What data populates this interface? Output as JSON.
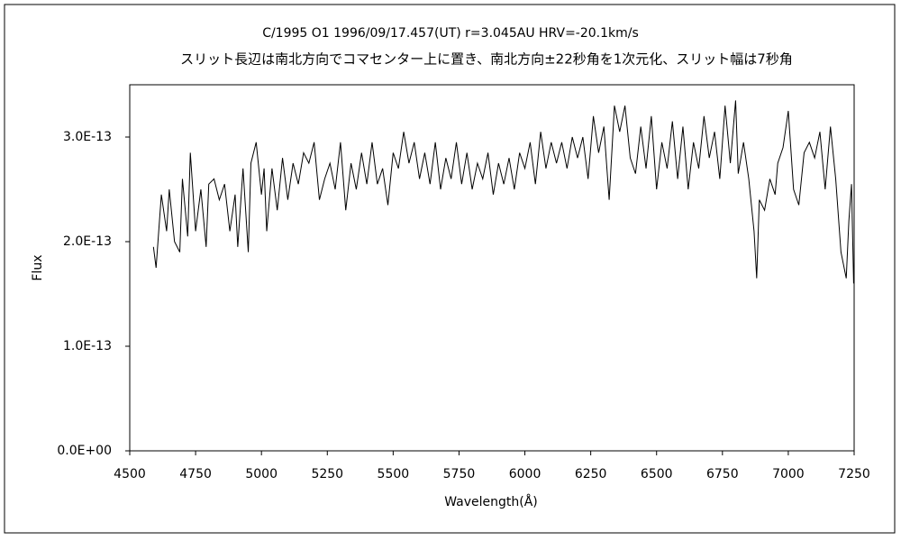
{
  "chart_data": {
    "type": "line",
    "title": "C/1995 O1    1996/09/17.457(UT)    r=3.045AU    HRV=-20.1km/s",
    "subtitle": "スリット長辺は南北方向でコマセンター上に置き、南北方向±22秒角を1次元化、スリット幅は7秒角",
    "x_label": "Wavelength(Å)",
    "y_label": "Flux",
    "color": "#000000",
    "xlim": [
      4500,
      7250
    ],
    "xticks": [
      4500,
      4750,
      5000,
      5250,
      5500,
      5750,
      6000,
      6250,
      6500,
      6750,
      7000,
      7250
    ],
    "ylim": [
      0,
      3.5e-13
    ],
    "yticks": [
      {
        "value": 0,
        "label": "0.0E+00"
      },
      {
        "value": 1e-13,
        "label": "1.0E-13"
      },
      {
        "value": 2e-13,
        "label": "2.0E-13"
      },
      {
        "value": 3e-13,
        "label": "3.0E-13"
      }
    ],
    "x": [
      4590,
      4600,
      4620,
      4640,
      4650,
      4670,
      4690,
      4700,
      4720,
      4730,
      4750,
      4770,
      4790,
      4800,
      4820,
      4840,
      4860,
      4880,
      4900,
      4910,
      4930,
      4950,
      4960,
      4980,
      5000,
      5010,
      5020,
      5040,
      5060,
      5080,
      5100,
      5120,
      5140,
      5160,
      5180,
      5200,
      5220,
      5240,
      5260,
      5280,
      5300,
      5320,
      5340,
      5360,
      5380,
      5400,
      5420,
      5440,
      5460,
      5480,
      5500,
      5520,
      5540,
      5560,
      5580,
      5600,
      5620,
      5640,
      5660,
      5680,
      5700,
      5720,
      5740,
      5760,
      5780,
      5800,
      5820,
      5840,
      5860,
      5880,
      5900,
      5920,
      5940,
      5960,
      5980,
      6000,
      6020,
      6040,
      6060,
      6080,
      6100,
      6120,
      6140,
      6160,
      6180,
      6200,
      6220,
      6240,
      6260,
      6280,
      6300,
      6320,
      6340,
      6360,
      6380,
      6400,
      6420,
      6440,
      6460,
      6480,
      6500,
      6520,
      6540,
      6560,
      6580,
      6600,
      6620,
      6640,
      6660,
      6680,
      6700,
      6720,
      6740,
      6760,
      6780,
      6800,
      6810,
      6830,
      6850,
      6870,
      6880,
      6890,
      6910,
      6930,
      6950,
      6960,
      6980,
      7000,
      7020,
      7040,
      7060,
      7080,
      7100,
      7120,
      7140,
      7160,
      7180,
      7200,
      7220,
      7230,
      7240,
      7248
    ],
    "values": [
      1.95e-13,
      1.75e-13,
      2.45e-13,
      2.1e-13,
      2.5e-13,
      2e-13,
      1.9e-13,
      2.6e-13,
      2.05e-13,
      2.85e-13,
      2.1e-13,
      2.5e-13,
      1.95e-13,
      2.55e-13,
      2.6e-13,
      2.4e-13,
      2.55e-13,
      2.1e-13,
      2.45e-13,
      1.95e-13,
      2.7e-13,
      1.9e-13,
      2.75e-13,
      2.95e-13,
      2.45e-13,
      2.7e-13,
      2.1e-13,
      2.7e-13,
      2.3e-13,
      2.8e-13,
      2.4e-13,
      2.75e-13,
      2.55e-13,
      2.85e-13,
      2.75e-13,
      2.95e-13,
      2.4e-13,
      2.6e-13,
      2.75e-13,
      2.5e-13,
      2.95e-13,
      2.3e-13,
      2.75e-13,
      2.5e-13,
      2.85e-13,
      2.55e-13,
      2.95e-13,
      2.55e-13,
      2.7e-13,
      2.35e-13,
      2.85e-13,
      2.7e-13,
      3.05e-13,
      2.75e-13,
      2.95e-13,
      2.6e-13,
      2.85e-13,
      2.55e-13,
      2.95e-13,
      2.5e-13,
      2.8e-13,
      2.6e-13,
      2.95e-13,
      2.55e-13,
      2.85e-13,
      2.5e-13,
      2.75e-13,
      2.6e-13,
      2.85e-13,
      2.45e-13,
      2.75e-13,
      2.55e-13,
      2.8e-13,
      2.5e-13,
      2.85e-13,
      2.7e-13,
      2.95e-13,
      2.55e-13,
      3.05e-13,
      2.7e-13,
      2.95e-13,
      2.75e-13,
      2.95e-13,
      2.7e-13,
      3e-13,
      2.8e-13,
      3e-13,
      2.6e-13,
      3.2e-13,
      2.85e-13,
      3.1e-13,
      2.4e-13,
      3.3e-13,
      3.05e-13,
      3.3e-13,
      2.8e-13,
      2.65e-13,
      3.1e-13,
      2.7e-13,
      3.2e-13,
      2.5e-13,
      2.95e-13,
      2.7e-13,
      3.15e-13,
      2.6e-13,
      3.1e-13,
      2.5e-13,
      2.95e-13,
      2.7e-13,
      3.2e-13,
      2.8e-13,
      3.05e-13,
      2.6e-13,
      3.3e-13,
      2.75e-13,
      3.35e-13,
      2.65e-13,
      2.95e-13,
      2.6e-13,
      2.1e-13,
      1.65e-13,
      2.4e-13,
      2.3e-13,
      2.6e-13,
      2.45e-13,
      2.75e-13,
      2.9e-13,
      3.25e-13,
      2.5e-13,
      2.35e-13,
      2.85e-13,
      2.95e-13,
      2.8e-13,
      3.05e-13,
      2.5e-13,
      3.1e-13,
      2.6e-13,
      1.9e-13,
      1.65e-13,
      2.2e-13,
      2.55e-13,
      1.6e-13
    ]
  }
}
